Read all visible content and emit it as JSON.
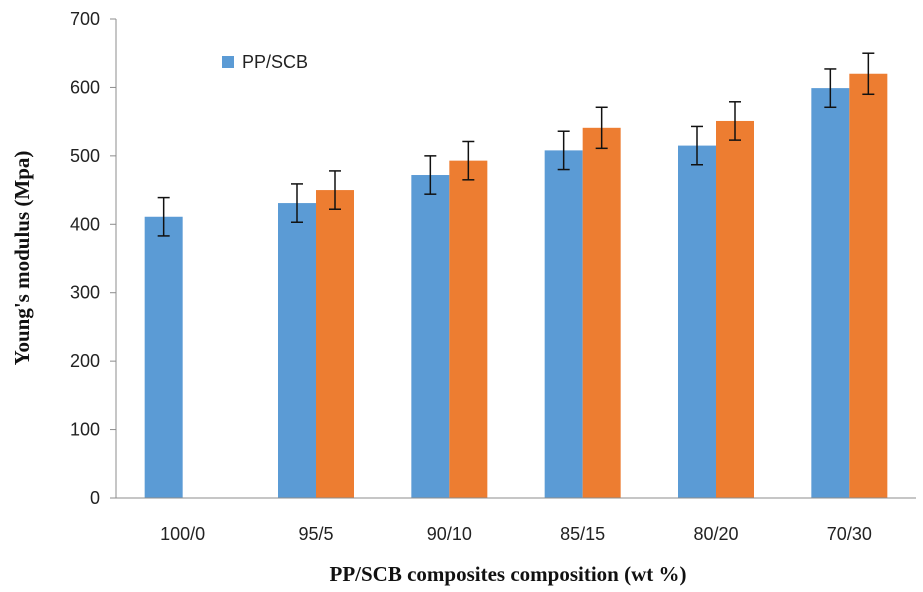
{
  "chart_data": {
    "type": "bar",
    "categories": [
      "100/0",
      "95/5",
      "90/10",
      "85/15",
      "80/20",
      "70/30"
    ],
    "series": [
      {
        "name": "PP/SCB",
        "color": "#5B9BD5",
        "values": [
          411,
          431,
          472,
          508,
          515,
          599
        ],
        "errors": [
          28,
          28,
          28,
          28,
          28,
          28
        ]
      },
      {
        "color": "#ED7D31",
        "values": [
          null,
          450,
          493,
          541,
          551,
          620
        ],
        "errors": [
          null,
          28,
          28,
          30,
          28,
          30
        ]
      }
    ],
    "xlabel": "PP/SCB composites composition (wt %)",
    "ylabel": "Young's modulus (Mpa)",
    "ylim": [
      0,
      700
    ],
    "yticks": [
      "0",
      "100",
      "200",
      "300",
      "400",
      "500",
      "600",
      "700"
    ],
    "legend_position": "top-left",
    "grid": false
  }
}
